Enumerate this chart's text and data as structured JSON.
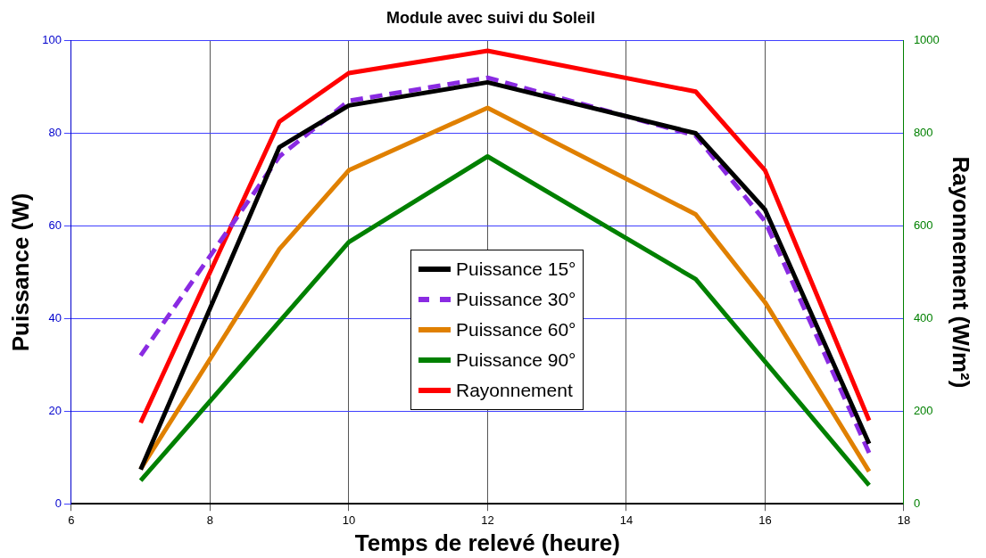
{
  "chart_data": {
    "type": "line",
    "title": "Module avec suivi du Soleil",
    "xlabel": "Temps de relevé (heure)",
    "ylabel": "Puissance (W)",
    "y2label": "Rayonnement (W/m²)",
    "xlim": [
      6,
      18
    ],
    "xticks": [
      6,
      8,
      10,
      12,
      14,
      16,
      18
    ],
    "ylim": [
      0,
      100
    ],
    "yticks": [
      0,
      20,
      40,
      60,
      80,
      100
    ],
    "y2lim": [
      0,
      1000
    ],
    "y2ticks": [
      0,
      200,
      400,
      600,
      800,
      1000
    ],
    "grid": true,
    "legend": "center",
    "marker": "none",
    "series": [
      {
        "name": "Puissance 15°",
        "color": "#000000",
        "line_style": "solid",
        "x": [
          7,
          9,
          10,
          12,
          15,
          16,
          17.5
        ],
        "values": [
          7.4,
          77,
          86,
          91,
          80,
          63.5,
          13
        ]
      },
      {
        "name": "Puissance 30°",
        "color": "#8a2be2",
        "line_style": "dashed",
        "x": [
          7,
          9,
          10,
          12,
          15,
          16,
          17.5
        ],
        "values": [
          32,
          75,
          87,
          92,
          79.5,
          61,
          11
        ]
      },
      {
        "name": "Puissance 60°",
        "color": "#e08000",
        "line_style": "solid",
        "x": [
          7,
          9,
          10,
          12,
          15,
          16,
          17.5
        ],
        "values": [
          7.5,
          55,
          72,
          85.5,
          62.5,
          43.5,
          7
        ]
      },
      {
        "name": "Puissance 90°",
        "color": "#008000",
        "line_style": "solid",
        "x": [
          7,
          10,
          12,
          15,
          17.5
        ],
        "values": [
          5,
          56.5,
          75,
          48.5,
          4
        ]
      },
      {
        "name": "Rayonnement",
        "color": "#ff0000",
        "line_style": "solid",
        "axis": "y2",
        "x": [
          7,
          9,
          10,
          12,
          15,
          16,
          17.5
        ],
        "values": [
          175,
          825,
          930,
          978,
          890,
          720,
          180
        ]
      }
    ]
  }
}
